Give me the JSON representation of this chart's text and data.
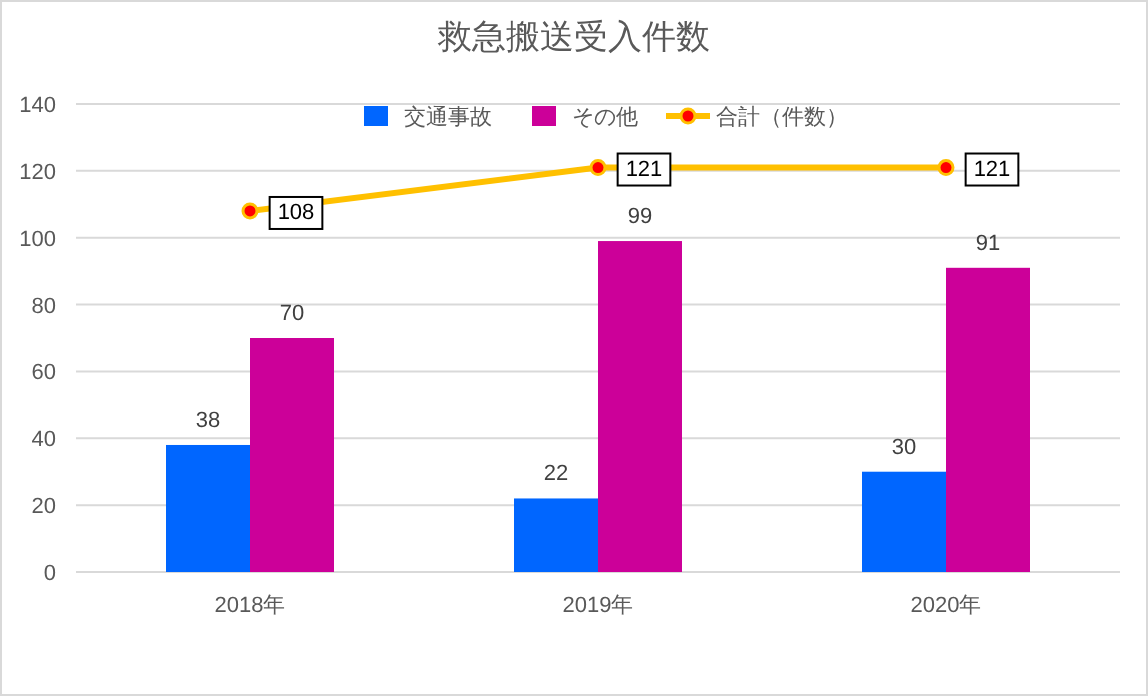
{
  "chart_data": {
    "type": "bar",
    "title": "救急搬送受入件数",
    "categories": [
      "2018年",
      "2019年",
      "2020年"
    ],
    "series": [
      {
        "name": "交通事故",
        "color": "#0066ff",
        "values": [
          38,
          22,
          30
        ]
      },
      {
        "name": "その他",
        "color": "#cc0099",
        "values": [
          70,
          99,
          91
        ]
      },
      {
        "name": "合計（件数）",
        "type": "line",
        "color": "#ffc000",
        "marker": "circle",
        "values": [
          108,
          121,
          121
        ]
      }
    ],
    "ylim": [
      0,
      140
    ],
    "yticks": [
      0,
      20,
      40,
      60,
      80,
      100,
      120,
      140
    ],
    "grid": "y",
    "legend": "top",
    "data_labels": true
  }
}
